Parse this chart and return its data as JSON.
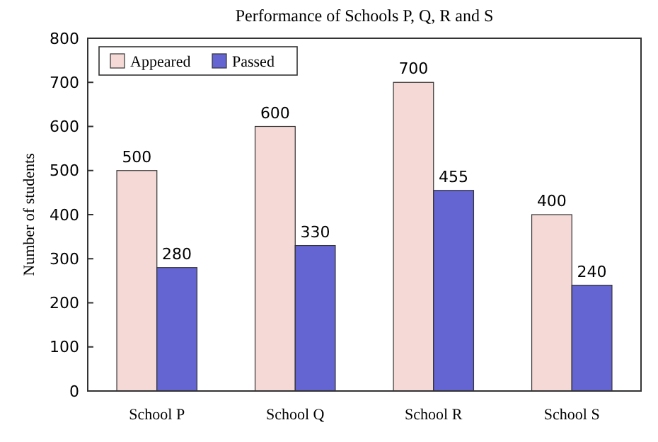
{
  "chart_data": {
    "type": "bar",
    "title": "Performance of Schools P, Q, R and S",
    "ylabel": "Number of students",
    "categories": [
      "School P",
      "School Q",
      "School R",
      "School S"
    ],
    "series": [
      {
        "name": "Appeared",
        "color": "#f4d9d6",
        "values": [
          500,
          600,
          700,
          400
        ]
      },
      {
        "name": "Passed",
        "color": "#6464d2",
        "values": [
          280,
          330,
          455,
          240
        ]
      }
    ],
    "ylim": [
      0,
      800
    ],
    "yticks": [
      0,
      100,
      200,
      300,
      400,
      500,
      600,
      700,
      800
    ],
    "data_labels": true,
    "legend": "top left",
    "grid": false
  }
}
